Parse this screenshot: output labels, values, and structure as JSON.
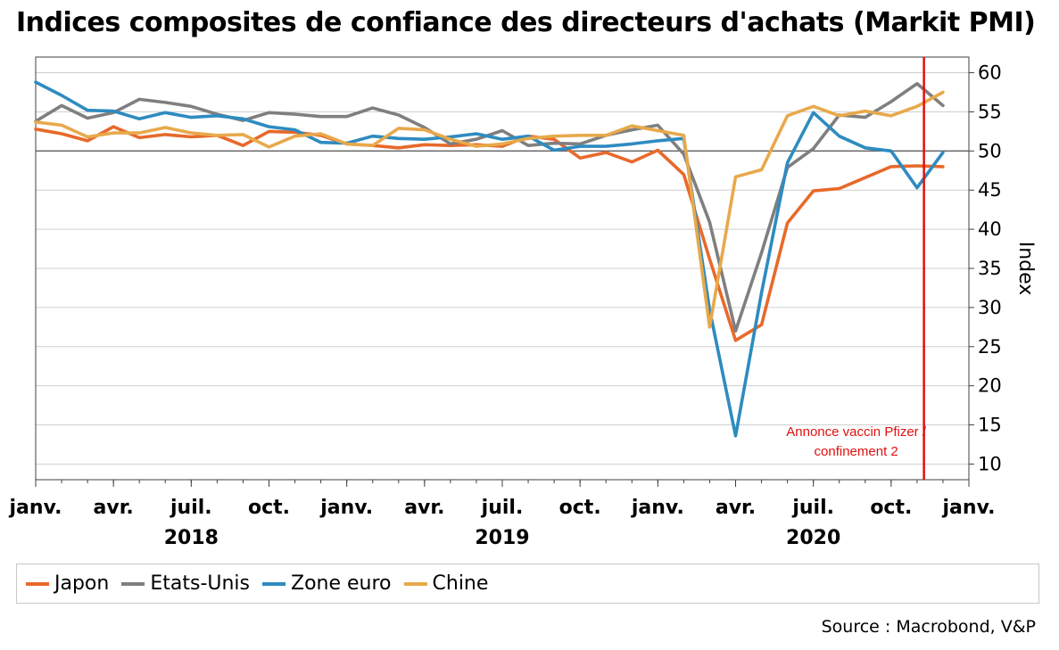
{
  "title": "Indices composites de confiance des directeurs d'achats (Markit PMI)",
  "source": "Source : Macrobond, V&P",
  "legend": [
    {
      "name": "Japon",
      "color": "#e8692a"
    },
    {
      "name": "Etats-Unis",
      "color": "#7f7f7f"
    },
    {
      "name": "Zone euro",
      "color": "#2e8bc0"
    },
    {
      "name": "Chine",
      "color": "#e8a94b"
    }
  ],
  "chart_data": {
    "type": "line",
    "ylabel": "Index",
    "ylim": [
      8,
      62
    ],
    "yticks": [
      10,
      15,
      20,
      25,
      30,
      35,
      40,
      45,
      50,
      55,
      60
    ],
    "reference_line": 50,
    "x": [
      "2018-01",
      "2018-02",
      "2018-03",
      "2018-04",
      "2018-05",
      "2018-06",
      "2018-07",
      "2018-08",
      "2018-09",
      "2018-10",
      "2018-11",
      "2018-12",
      "2019-01",
      "2019-02",
      "2019-03",
      "2019-04",
      "2019-05",
      "2019-06",
      "2019-07",
      "2019-08",
      "2019-09",
      "2019-10",
      "2019-11",
      "2019-12",
      "2020-01",
      "2020-02",
      "2020-03",
      "2020-04",
      "2020-05",
      "2020-06",
      "2020-07",
      "2020-08",
      "2020-09",
      "2020-10",
      "2020-11",
      "2020-12"
    ],
    "xlim": [
      "2018-01",
      "2021-01"
    ],
    "xticks": [
      {
        "date": "2018-01",
        "label": "janv."
      },
      {
        "date": "2018-04",
        "label": "avr."
      },
      {
        "date": "2018-07",
        "label": "juil."
      },
      {
        "date": "2018-10",
        "label": "oct."
      },
      {
        "date": "2019-01",
        "label": "janv."
      },
      {
        "date": "2019-04",
        "label": "avr."
      },
      {
        "date": "2019-07",
        "label": "juil."
      },
      {
        "date": "2019-10",
        "label": "oct."
      },
      {
        "date": "2020-01",
        "label": "janv."
      },
      {
        "date": "2020-04",
        "label": "avr."
      },
      {
        "date": "2020-07",
        "label": "juil."
      },
      {
        "date": "2020-10",
        "label": "oct."
      },
      {
        "date": "2021-01",
        "label": "janv."
      }
    ],
    "year_labels": [
      {
        "date": "2018-07",
        "label": "2018"
      },
      {
        "date": "2019-07",
        "label": "2019"
      },
      {
        "date": "2020-07",
        "label": "2020"
      }
    ],
    "annotation": {
      "date": "2020-11-09",
      "lines": [
        "Annonce vaccin Pfizer /",
        "confinement 2"
      ],
      "color": "#e01010"
    },
    "series": [
      {
        "name": "Japon",
        "color": "#e8692a",
        "values": [
          52.8,
          52.2,
          51.3,
          53.1,
          51.7,
          52.1,
          51.8,
          52.0,
          50.7,
          52.5,
          52.4,
          52.0,
          50.9,
          50.7,
          50.4,
          50.8,
          50.7,
          50.8,
          50.6,
          51.9,
          51.5,
          49.1,
          49.8,
          48.6,
          50.1,
          47.0,
          36.2,
          25.8,
          27.8,
          40.8,
          44.9,
          45.2,
          46.6,
          48.0,
          48.1,
          48.0
        ]
      },
      {
        "name": "Etats-Unis",
        "color": "#7f7f7f",
        "values": [
          53.8,
          55.8,
          54.2,
          54.9,
          56.6,
          56.2,
          55.7,
          54.7,
          53.9,
          54.9,
          54.7,
          54.4,
          54.4,
          55.5,
          54.6,
          53.0,
          50.9,
          51.5,
          52.6,
          50.7,
          51.0,
          50.9,
          52.0,
          52.7,
          53.3,
          49.6,
          40.9,
          27.0,
          37.0,
          47.9,
          50.3,
          54.6,
          54.3,
          56.3,
          58.6,
          55.8
        ]
      },
      {
        "name": "Zone euro",
        "color": "#2e8bc0",
        "values": [
          58.8,
          57.1,
          55.2,
          55.1,
          54.1,
          54.9,
          54.3,
          54.5,
          54.1,
          53.1,
          52.7,
          51.1,
          51.0,
          51.9,
          51.6,
          51.5,
          51.8,
          52.2,
          51.5,
          51.9,
          50.1,
          50.6,
          50.6,
          50.9,
          51.3,
          51.6,
          29.7,
          13.6,
          31.9,
          48.5,
          54.9,
          51.9,
          50.4,
          50.0,
          45.3,
          49.8
        ]
      },
      {
        "name": "Chine",
        "color": "#e8a94b",
        "values": [
          53.7,
          53.3,
          51.8,
          52.3,
          52.3,
          53.0,
          52.3,
          52.0,
          52.1,
          50.5,
          51.9,
          52.2,
          50.9,
          50.7,
          52.9,
          52.7,
          51.5,
          50.6,
          50.9,
          51.6,
          51.9,
          52.0,
          52.0,
          53.2,
          52.6,
          52.0,
          27.5,
          46.7,
          47.6,
          54.5,
          55.7,
          54.5,
          55.1,
          54.5,
          55.7,
          57.5
        ]
      }
    ]
  }
}
